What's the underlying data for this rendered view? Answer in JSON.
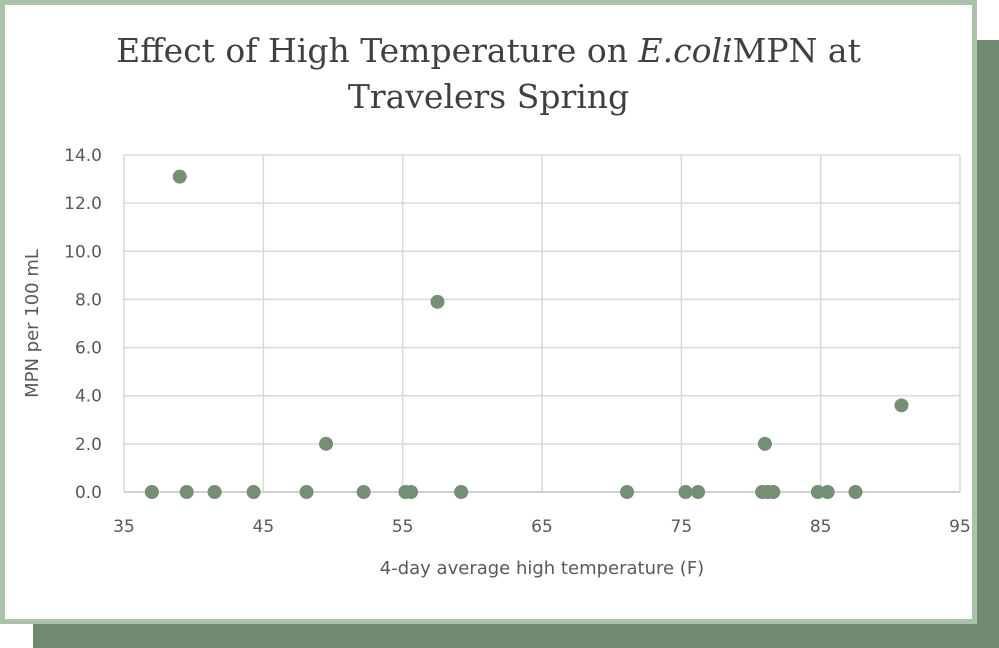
{
  "chart_data": {
    "type": "scatter",
    "title_line1_prefix": "Effect of High Temperature on ",
    "title_line1_italic": "E.coli",
    "title_line1_suffix": "MPN at",
    "title_line2": "Travelers Spring",
    "xlabel": "4-day average high temperature (F)",
    "ylabel": "MPN per 100 mL",
    "xlim": [
      35,
      95
    ],
    "ylim": [
      0,
      14
    ],
    "x_ticks": [
      35,
      45,
      55,
      65,
      75,
      85,
      95
    ],
    "x_tick_labels": [
      "35",
      "45",
      "55",
      "65",
      "75",
      "85",
      "95"
    ],
    "y_ticks": [
      0,
      2,
      4,
      6,
      8,
      10,
      12,
      14
    ],
    "y_tick_labels": [
      "0.0",
      "2.0",
      "4.0",
      "6.0",
      "8.0",
      "10.0",
      "12.0",
      "14.0"
    ],
    "grid": true,
    "marker_color": "#748f74",
    "points": [
      {
        "x": 37.0,
        "y": 0.0
      },
      {
        "x": 39.0,
        "y": 13.1
      },
      {
        "x": 39.5,
        "y": 0.0
      },
      {
        "x": 41.5,
        "y": 0.0
      },
      {
        "x": 44.3,
        "y": 0.0
      },
      {
        "x": 48.1,
        "y": 0.0
      },
      {
        "x": 49.5,
        "y": 2.0
      },
      {
        "x": 52.2,
        "y": 0.0
      },
      {
        "x": 55.2,
        "y": 0.0
      },
      {
        "x": 55.6,
        "y": 0.0
      },
      {
        "x": 57.5,
        "y": 7.9
      },
      {
        "x": 59.2,
        "y": 0.0
      },
      {
        "x": 71.1,
        "y": 0.0
      },
      {
        "x": 75.3,
        "y": 0.0
      },
      {
        "x": 76.2,
        "y": 0.0
      },
      {
        "x": 80.8,
        "y": 0.0
      },
      {
        "x": 81.0,
        "y": 2.0
      },
      {
        "x": 81.2,
        "y": 0.0
      },
      {
        "x": 81.6,
        "y": 0.0
      },
      {
        "x": 84.8,
        "y": 0.0
      },
      {
        "x": 85.5,
        "y": 0.0
      },
      {
        "x": 87.5,
        "y": 0.0
      },
      {
        "x": 90.8,
        "y": 3.6
      }
    ]
  }
}
